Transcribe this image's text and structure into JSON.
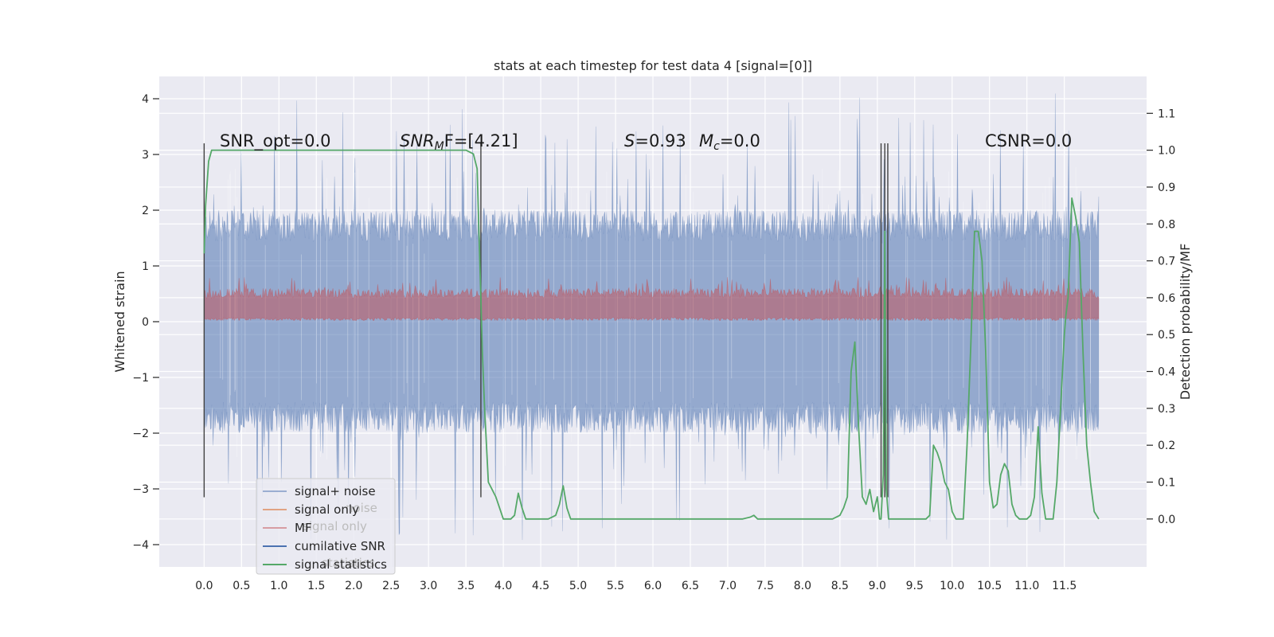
{
  "chart_data": {
    "type": "line",
    "title": "stats at each timestep for test data 4 [signal=[0]]",
    "ylabel": "Whitened strain",
    "y2label": "Detection probability/MF",
    "xlim": [
      -0.6,
      12.6
    ],
    "ylim": [
      -4.4,
      4.4
    ],
    "y2lim": [
      -0.13,
      1.2
    ],
    "x_ticks": [
      "0.0",
      "0.5",
      "1.0",
      "1.5",
      "2.0",
      "2.5",
      "3.0",
      "3.5",
      "4.0",
      "4.5",
      "5.0",
      "5.5",
      "6.0",
      "6.5",
      "7.0",
      "7.5",
      "8.0",
      "8.5",
      "9.0",
      "9.5",
      "10.0",
      "10.5",
      "11.0",
      "11.5"
    ],
    "y_ticks": [
      "4",
      "3",
      "2",
      "1",
      "0",
      "−1",
      "−2",
      "−3",
      "−4"
    ],
    "y2_ticks": [
      "1.1",
      "1.0",
      "0.9",
      "0.8",
      "0.7",
      "0.6",
      "0.5",
      "0.4",
      "0.3",
      "0.2",
      "0.1",
      "0.0"
    ],
    "grid": true,
    "legend_position": "lower-left",
    "legend": [
      "signal+ noise",
      "signal only",
      "MF",
      "cumilative SNR",
      "signal statistics"
    ],
    "legend_ghost": [
      "noise",
      "signal only",
      "statistics"
    ],
    "annotations": {
      "snr_opt": "SNR_opt=0.0",
      "snr_mf_a": "SNR",
      "snr_mf_sub": "M",
      "snr_mf_b": "F=[4.21]",
      "s_a": "S",
      "s_b": "=0.93",
      "mc_a": "M",
      "mc_sub": "c",
      "mc_b": "=0.0",
      "csnr": "CSNR=0.0"
    },
    "colors": {
      "background": "#eaeaf2",
      "grid": "#ffffff",
      "signal_noise": "#4c72b0",
      "signal_only": "#dd8452",
      "mf": "#c44e52",
      "cumulative_snr": "#4c72b0",
      "signal_statistics": "#55a868",
      "vertical_markers": "#404040"
    },
    "noise_band": {
      "x_range": [
        0.0,
        11.96
      ],
      "typical_abs": 2.0,
      "max_abs": 4.1
    },
    "mf_band": {
      "y_range": [
        0.0,
        0.6
      ],
      "peak": 0.8
    },
    "vertical_markers_x": [
      0.0,
      3.7,
      9.05,
      9.1,
      9.14
    ],
    "vertical_marker_range": [
      -3.15,
      3.2
    ],
    "series": [
      {
        "name": "signal statistics",
        "axis": "y2",
        "x": [
          0.0,
          0.02,
          0.06,
          0.1,
          0.3,
          0.6,
          1.0,
          1.5,
          2.0,
          2.5,
          3.0,
          3.3,
          3.5,
          3.6,
          3.65,
          3.7,
          3.72,
          3.75,
          3.8,
          3.85,
          3.9,
          3.95,
          4.0,
          4.05,
          4.1,
          4.15,
          4.2,
          4.25,
          4.3,
          4.4,
          4.5,
          4.6,
          4.7,
          4.75,
          4.8,
          4.85,
          4.9,
          5.0,
          5.5,
          6.0,
          6.5,
          7.0,
          7.2,
          7.3,
          7.35,
          7.4,
          7.5,
          8.0,
          8.4,
          8.5,
          8.55,
          8.6,
          8.65,
          8.7,
          8.75,
          8.8,
          8.85,
          8.9,
          8.95,
          9.0,
          9.03,
          9.05,
          9.08,
          9.1,
          9.12,
          9.15,
          9.2,
          9.25,
          9.3,
          9.4,
          9.5,
          9.6,
          9.65,
          9.7,
          9.75,
          9.8,
          9.85,
          9.9,
          9.95,
          10.0,
          10.05,
          10.1,
          10.15,
          10.2,
          10.25,
          10.3,
          10.35,
          10.4,
          10.45,
          10.5,
          10.55,
          10.6,
          10.65,
          10.7,
          10.75,
          10.8,
          10.85,
          10.9,
          10.95,
          11.0,
          11.05,
          11.1,
          11.15,
          11.2,
          11.25,
          11.3,
          11.35,
          11.4,
          11.45,
          11.5,
          11.52,
          11.55,
          11.6,
          11.65,
          11.7,
          11.75,
          11.8,
          11.85,
          11.9,
          11.96
        ],
        "values": [
          0.72,
          0.85,
          0.97,
          1.0,
          1.0,
          1.0,
          1.0,
          1.0,
          1.0,
          1.0,
          1.0,
          1.0,
          1.0,
          0.99,
          0.95,
          0.6,
          0.45,
          0.3,
          0.1,
          0.08,
          0.06,
          0.03,
          0.0,
          0.0,
          0.0,
          0.01,
          0.07,
          0.03,
          0.0,
          0.0,
          0.0,
          0.0,
          0.01,
          0.04,
          0.09,
          0.03,
          0.0,
          0.0,
          0.0,
          0.0,
          0.0,
          0.0,
          0.0,
          0.005,
          0.01,
          0.0,
          0.0,
          0.0,
          0.0,
          0.01,
          0.03,
          0.06,
          0.4,
          0.48,
          0.25,
          0.06,
          0.04,
          0.08,
          0.02,
          0.06,
          0.0,
          0.0,
          0.12,
          0.78,
          0.08,
          0.0,
          0.0,
          0.0,
          0.0,
          0.0,
          0.0,
          0.0,
          0.0,
          0.01,
          0.2,
          0.18,
          0.15,
          0.1,
          0.08,
          0.02,
          0.0,
          0.0,
          0.0,
          0.2,
          0.47,
          0.78,
          0.78,
          0.7,
          0.45,
          0.1,
          0.03,
          0.04,
          0.12,
          0.15,
          0.13,
          0.04,
          0.01,
          0.0,
          0.0,
          0.0,
          0.01,
          0.06,
          0.25,
          0.07,
          0.0,
          0.0,
          0.0,
          0.1,
          0.3,
          0.5,
          0.55,
          0.6,
          0.87,
          0.82,
          0.75,
          0.45,
          0.2,
          0.1,
          0.02,
          0.0
        ]
      }
    ]
  }
}
